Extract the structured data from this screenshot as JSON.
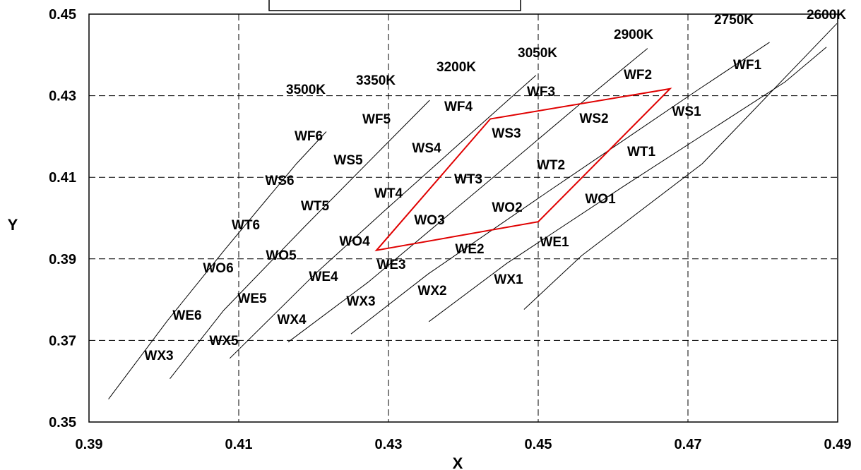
{
  "chart_data": {
    "type": "line",
    "title": "",
    "xlabel": "X",
    "ylabel": "Y",
    "xlim": [
      0.39,
      0.49
    ],
    "ylim": [
      0.35,
      0.45
    ],
    "x_ticks": [
      "0.39",
      "0.41",
      "0.43",
      "0.45",
      "0.47",
      "0.49"
    ],
    "y_ticks": [
      "0.35",
      "0.37",
      "0.39",
      "0.41",
      "0.43",
      "0.45"
    ],
    "grid": true,
    "series": [
      {
        "name": "3500K",
        "points": [
          [
            0.3926,
            0.3556
          ],
          [
            0.4005,
            0.3749
          ],
          [
            0.4082,
            0.3924
          ],
          [
            0.4177,
            0.4133
          ],
          [
            0.4217,
            0.4212
          ]
        ]
      },
      {
        "name": "3350K",
        "points": [
          [
            0.4008,
            0.3606
          ],
          [
            0.408,
            0.3774
          ],
          [
            0.4188,
            0.3979
          ],
          [
            0.4313,
            0.4211
          ],
          [
            0.4355,
            0.4289
          ]
        ]
      },
      {
        "name": "3200K",
        "points": [
          [
            0.4088,
            0.3656
          ],
          [
            0.4202,
            0.3863
          ],
          [
            0.4293,
            0.4015
          ],
          [
            0.4442,
            0.426
          ],
          [
            0.4497,
            0.435
          ]
        ]
      },
      {
        "name": "3050K",
        "points": [
          [
            0.4166,
            0.3696
          ],
          [
            0.4273,
            0.3843
          ],
          [
            0.4427,
            0.408
          ],
          [
            0.4562,
            0.4289
          ],
          [
            0.4646,
            0.4416
          ]
        ]
      },
      {
        "name": "2900K",
        "points": [
          [
            0.425,
            0.3716
          ],
          [
            0.4353,
            0.3863
          ],
          [
            0.4514,
            0.4066
          ],
          [
            0.4713,
            0.4314
          ],
          [
            0.4809,
            0.4431
          ]
        ]
      },
      {
        "name": "2750K",
        "points": [
          [
            0.4354,
            0.3746
          ],
          [
            0.4458,
            0.3889
          ],
          [
            0.4615,
            0.4079
          ],
          [
            0.483,
            0.4334
          ],
          [
            0.4885,
            0.4419
          ]
        ]
      },
      {
        "name": "2600K",
        "points": [
          [
            0.4481,
            0.3776
          ],
          [
            0.4558,
            0.3908
          ],
          [
            0.4719,
            0.4133
          ],
          [
            0.4899,
            0.4477
          ],
          [
            0.4899,
            0.4477
          ]
        ]
      }
    ],
    "bins": [
      "WF1",
      "WF2",
      "WF3",
      "WF4",
      "WF5",
      "WF6",
      "WS1",
      "WS2",
      "WS3",
      "WS4",
      "WS5",
      "WS6",
      "WT1",
      "WT2",
      "WT3",
      "WT4",
      "WT5",
      "WT6",
      "WO1",
      "WO2",
      "WO3",
      "WO4",
      "WO5",
      "WO6",
      "WE1",
      "WE2",
      "WE3",
      "WE4",
      "WE5",
      "WE6",
      "WX1",
      "WX2",
      "WX3",
      "WX4",
      "WX5",
      "WX3"
    ],
    "cct_labels": [
      "3500K",
      "3350K",
      "3200K",
      "3050K",
      "2900K",
      "2750K",
      "2600K"
    ],
    "highlight_region": {
      "color": "#e00000",
      "points": [
        [
          0.4284,
          0.3921
        ],
        [
          0.4436,
          0.4243
        ],
        [
          0.4676,
          0.4317
        ],
        [
          0.45,
          0.3991
        ]
      ]
    }
  }
}
